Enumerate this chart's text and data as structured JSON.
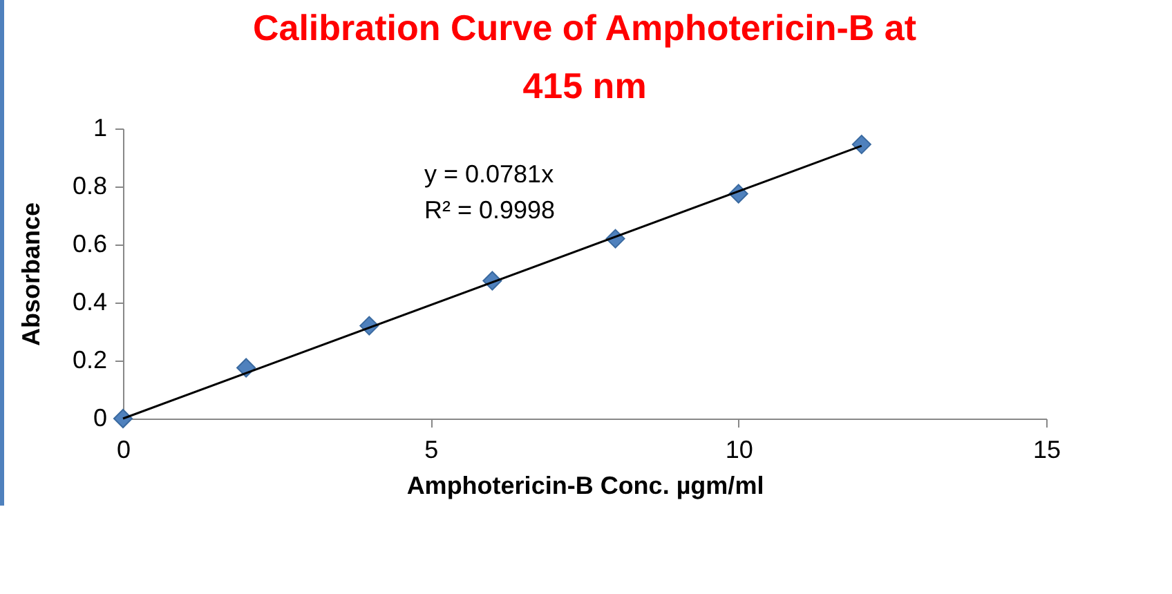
{
  "chart_data": {
    "type": "scatter",
    "title": "Calibration Curve of Amphotericin-B at 415 nm",
    "xlabel": "Amphotericin-B Conc. µgm/ml",
    "ylabel": "Absorbance",
    "annotations": [
      "y = 0.0781x",
      "R² = 0.9998"
    ],
    "xlim": [
      0,
      15
    ],
    "xticks": [
      0,
      5,
      10,
      15
    ],
    "ylim": [
      0,
      1
    ],
    "yticks": [
      0,
      0.2,
      0.4,
      0.6,
      0.8,
      1
    ],
    "grid": false,
    "series": [
      {
        "color": "#4f81bd",
        "marker": "diamond",
        "x": [
          0,
          2,
          4,
          6,
          8,
          10,
          12
        ],
        "values": [
          0,
          0.175,
          0.32,
          0.475,
          0.62,
          0.775,
          0.945
        ]
      },
      {
        "type": "line",
        "color": "#000000",
        "x": [
          0,
          12
        ],
        "values": [
          0,
          0.94
        ],
        "marker": "none",
        "line_style": "solid"
      }
    ]
  }
}
